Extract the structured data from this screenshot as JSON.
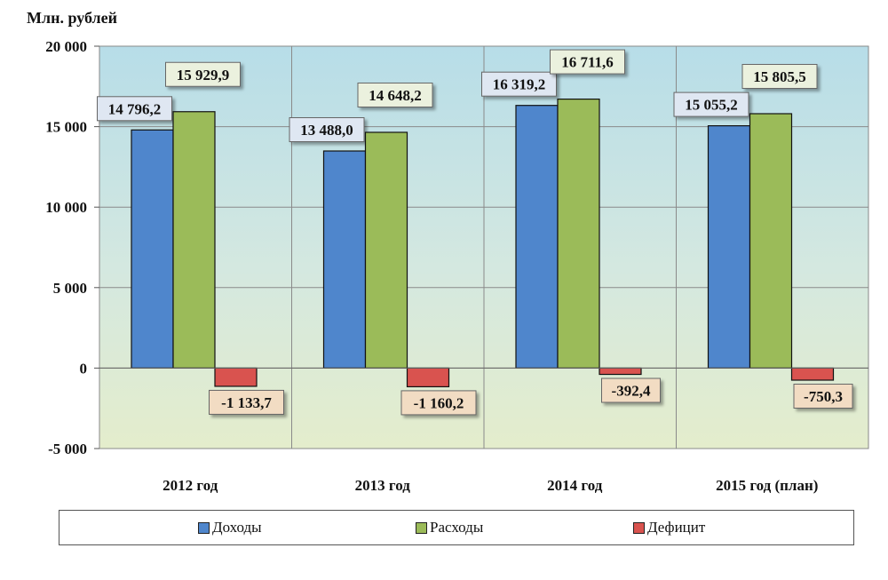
{
  "chart_data": {
    "type": "bar",
    "ylabel": "Млн. рублей",
    "categories": [
      "2012 год",
      "2013 год",
      "2014 год",
      "2015 год (план)"
    ],
    "series": [
      {
        "name": "Доходы",
        "values": [
          14796.2,
          13488.0,
          16319.2,
          15055.2
        ],
        "labels": [
          "14 796,2",
          "13 488,0",
          "16 319,2",
          "15 055,2"
        ],
        "color": "#4f86cc",
        "label_bg": "#dfe7f2"
      },
      {
        "name": "Расходы",
        "values": [
          15929.9,
          14648.2,
          16711.6,
          15805.5
        ],
        "labels": [
          "15 929,9",
          "14 648,2",
          "16 711,6",
          "15 805,5"
        ],
        "color": "#9bbb59",
        "label_bg": "#ebf1de"
      },
      {
        "name": "Дефицит",
        "values": [
          -1133.7,
          -1160.2,
          -392.4,
          -750.3
        ],
        "labels": [
          "-1 133,7",
          "-1 160,2",
          "-392,4",
          "-750,3"
        ],
        "color": "#d9534f",
        "label_bg": "#f2dcc3"
      }
    ],
    "ylim": [
      -5000,
      20000
    ],
    "yticks": [
      -5000,
      0,
      5000,
      10000,
      15000,
      20000
    ],
    "ytick_labels": [
      "-5 000",
      "0",
      "5 000",
      "10 000",
      "15 000",
      "20 000"
    ],
    "grid": true,
    "legend_position": "bottom"
  }
}
